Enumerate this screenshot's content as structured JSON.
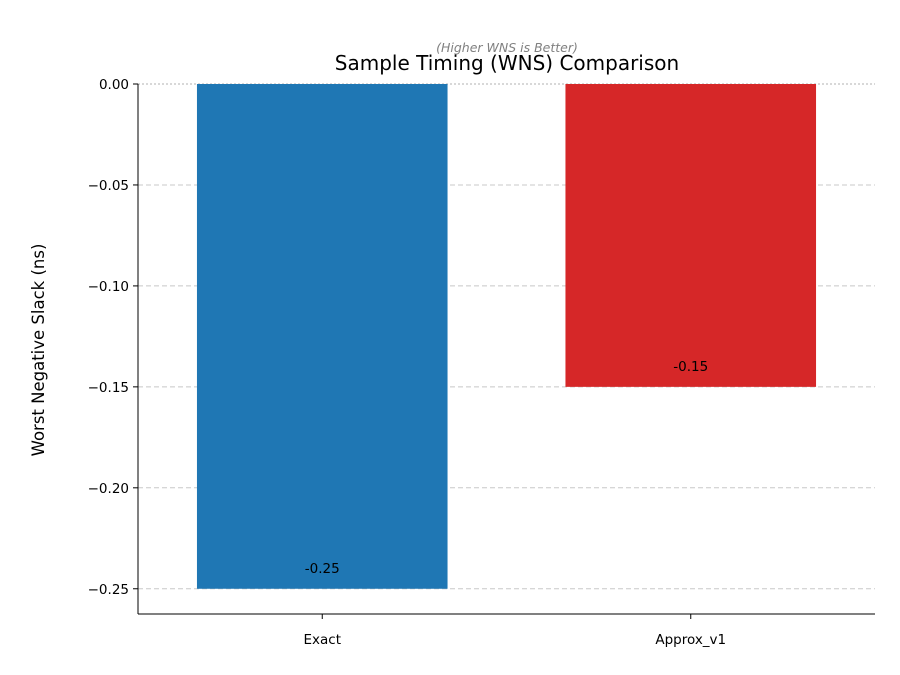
{
  "chart_data": {
    "type": "bar",
    "title": "Sample Timing (WNS) Comparison",
    "subtitle": "(Higher WNS is Better)",
    "xlabel": "",
    "ylabel": "Worst Negative Slack (ns)",
    "categories": [
      "Exact",
      "Approx_v1"
    ],
    "values": [
      -0.25,
      -0.15
    ],
    "data_labels": [
      "-0.25",
      "-0.15"
    ],
    "colors": [
      "#1f77b4",
      "#d62728"
    ],
    "ylim": [
      -0.2625,
      0.0
    ],
    "yticks": [
      0.0,
      -0.05,
      -0.1,
      -0.15,
      -0.2,
      -0.25
    ],
    "ytick_labels": [
      "0.00",
      "−0.05",
      "−0.10",
      "−0.15",
      "−0.20",
      "−0.25"
    ],
    "grid": "y-dashed",
    "legend": "none"
  }
}
